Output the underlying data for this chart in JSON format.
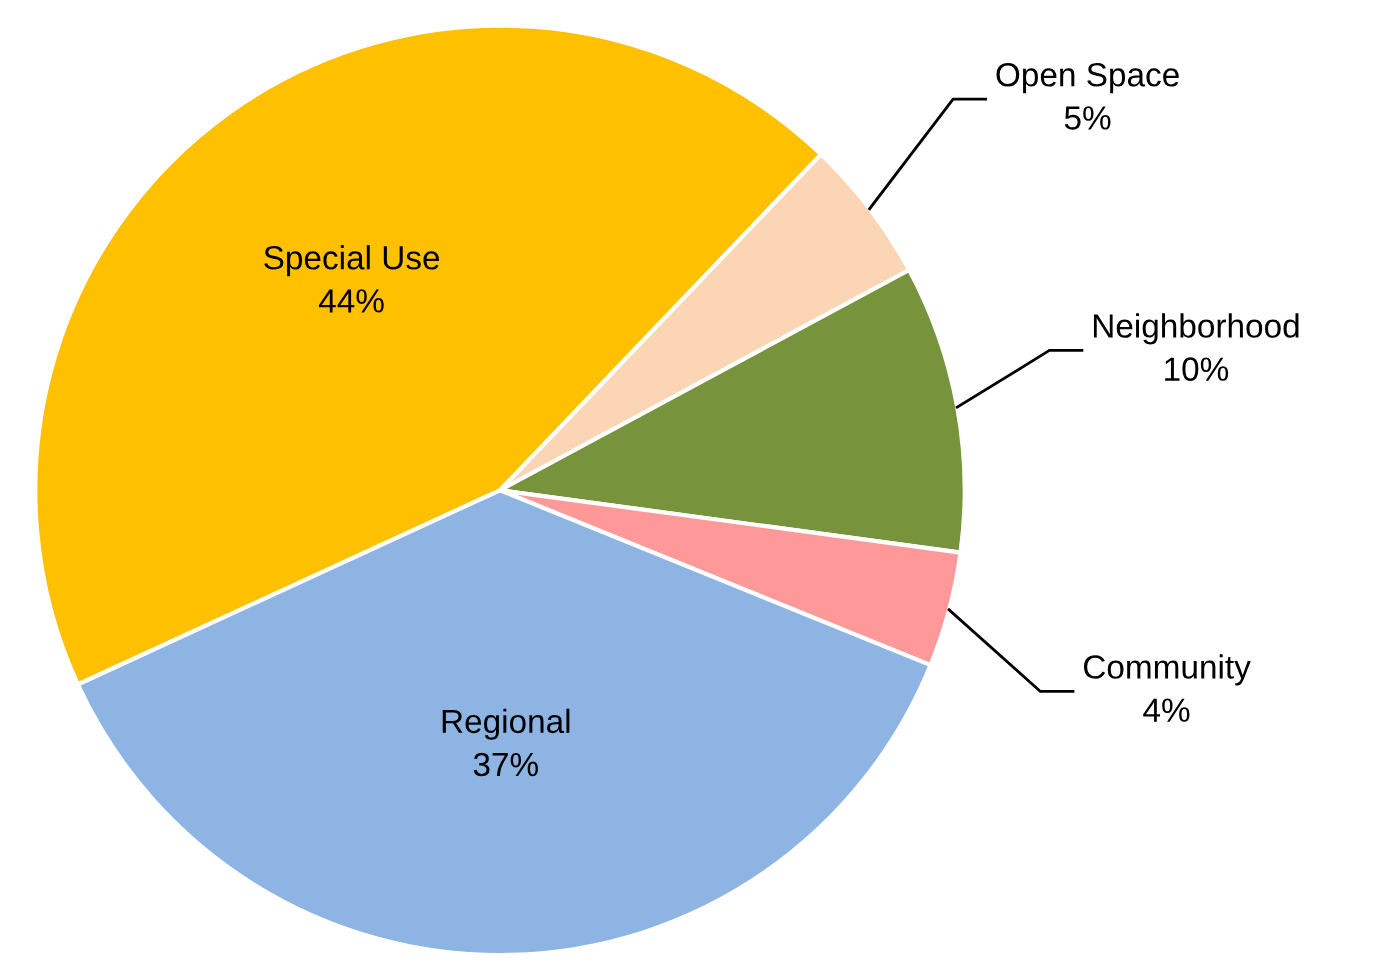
{
  "chart_data": {
    "type": "pie",
    "categories": [
      "Special Use",
      "Open Space",
      "Neighborhood",
      "Community",
      "Regional"
    ],
    "values": [
      44,
      5,
      10,
      4,
      37
    ],
    "colors": [
      "#ffc000",
      "#fcd5b5",
      "#77933c",
      "#ff9999",
      "#8eb4e3"
    ],
    "value_labels": [
      "44%",
      "5%",
      "10%",
      "4%",
      "37%"
    ],
    "legend": false
  }
}
